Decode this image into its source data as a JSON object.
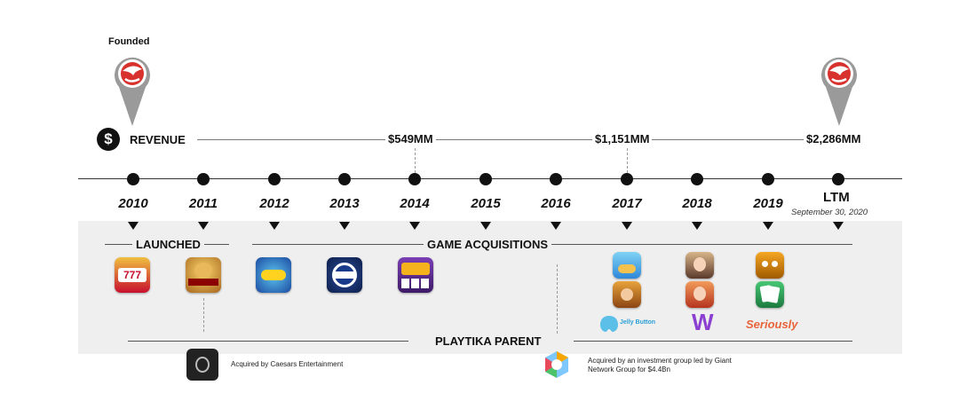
{
  "founded_label": "Founded",
  "revenue": {
    "icon": "dollar-icon",
    "label": "REVENUE",
    "values": [
      "$549MM",
      "$1,151MM",
      "$2,286MM"
    ]
  },
  "timeline": {
    "years": [
      "2010",
      "2011",
      "2012",
      "2013",
      "2014",
      "2015",
      "2016",
      "2017",
      "2018",
      "2019"
    ],
    "ltm_label": "LTM",
    "ltm_date": "September 30, 2020"
  },
  "sections": {
    "launched": "LAUNCHED",
    "acquisitions": "GAME ACQUISITIONS",
    "parent": "PLAYTIKA PARENT"
  },
  "studio_logos": {
    "jelly_button": "Jelly Button",
    "wooga": "W",
    "seriously": "Seriously"
  },
  "game_icons": [
    "slotomania-icon",
    "caesars-slots-icon",
    "bingo-blitz-icon",
    "wsop-poker-icon",
    "house-of-fun-icon",
    "pirate-kings-icon",
    "board-kings-icon",
    "june-journey-icon",
    "pearls-peril-icon",
    "best-fiends-icon",
    "solitaire-icon"
  ],
  "parents": [
    {
      "text": "Acquired by Caesars Entertainment"
    },
    {
      "text": "Acquired by an investment group led by Giant Network Group for $4.4Bn"
    }
  ],
  "colors": {
    "pin": "#9a9a9a",
    "logo": "#d7322e",
    "band": "#efefef"
  }
}
